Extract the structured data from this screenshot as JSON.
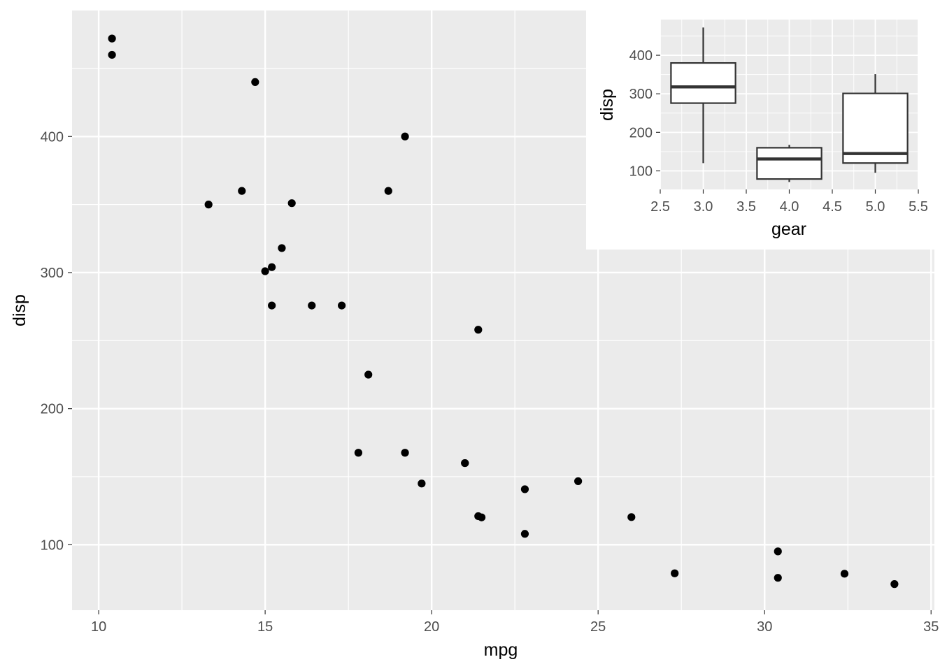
{
  "chart_data": [
    {
      "type": "scatter",
      "xlabel": "mpg",
      "ylabel": "disp",
      "xlim": [
        9.2,
        35.1
      ],
      "ylim": [
        51.9,
        492.6
      ],
      "x_ticks": [
        10,
        15,
        20,
        25,
        30,
        35
      ],
      "y_ticks": [
        100,
        200,
        300,
        400
      ],
      "grid": true,
      "point_color": "#000000",
      "panel_color": "#ebebeb",
      "points": [
        {
          "x": 10.4,
          "y": 472
        },
        {
          "x": 10.4,
          "y": 460
        },
        {
          "x": 14.7,
          "y": 440
        },
        {
          "x": 19.2,
          "y": 400
        },
        {
          "x": 14.3,
          "y": 360
        },
        {
          "x": 18.7,
          "y": 360
        },
        {
          "x": 13.3,
          "y": 350
        },
        {
          "x": 15.8,
          "y": 351
        },
        {
          "x": 15.5,
          "y": 318
        },
        {
          "x": 15.2,
          "y": 304
        },
        {
          "x": 15.0,
          "y": 301
        },
        {
          "x": 15.2,
          "y": 275.8
        },
        {
          "x": 16.4,
          "y": 275.8
        },
        {
          "x": 17.3,
          "y": 275.8
        },
        {
          "x": 21.4,
          "y": 258
        },
        {
          "x": 18.1,
          "y": 225
        },
        {
          "x": 17.8,
          "y": 167.6
        },
        {
          "x": 19.2,
          "y": 167.6
        },
        {
          "x": 21.0,
          "y": 160
        },
        {
          "x": 21.0,
          "y": 160
        },
        {
          "x": 24.4,
          "y": 146.7
        },
        {
          "x": 19.7,
          "y": 145
        },
        {
          "x": 22.8,
          "y": 140.8
        },
        {
          "x": 21.4,
          "y": 121
        },
        {
          "x": 21.5,
          "y": 120.1
        },
        {
          "x": 26.0,
          "y": 120.3
        },
        {
          "x": 22.8,
          "y": 108
        },
        {
          "x": 30.4,
          "y": 95.1
        },
        {
          "x": 27.3,
          "y": 79
        },
        {
          "x": 32.4,
          "y": 78.7
        },
        {
          "x": 30.4,
          "y": 75.7
        },
        {
          "x": 33.9,
          "y": 71.1
        }
      ]
    },
    {
      "type": "box",
      "xlabel": "gear",
      "ylabel": "disp",
      "xlim": [
        2.5,
        5.5
      ],
      "ylim": [
        51.9,
        492.6
      ],
      "x_ticks": [
        "2.5",
        "3.0",
        "3.5",
        "4.0",
        "4.5",
        "5.0",
        "5.5"
      ],
      "y_ticks": [
        100,
        200,
        300,
        400
      ],
      "grid": true,
      "boxes": [
        {
          "x": 3,
          "min": 120.1,
          "q1": 275.8,
          "median": 318,
          "q3": 380,
          "max": 472
        },
        {
          "x": 4,
          "min": 71.1,
          "q1": 78.85,
          "median": 130.9,
          "q3": 160,
          "max": 167.6
        },
        {
          "x": 5,
          "min": 95.1,
          "q1": 120.3,
          "median": 145,
          "q3": 301,
          "max": 351
        }
      ]
    }
  ]
}
